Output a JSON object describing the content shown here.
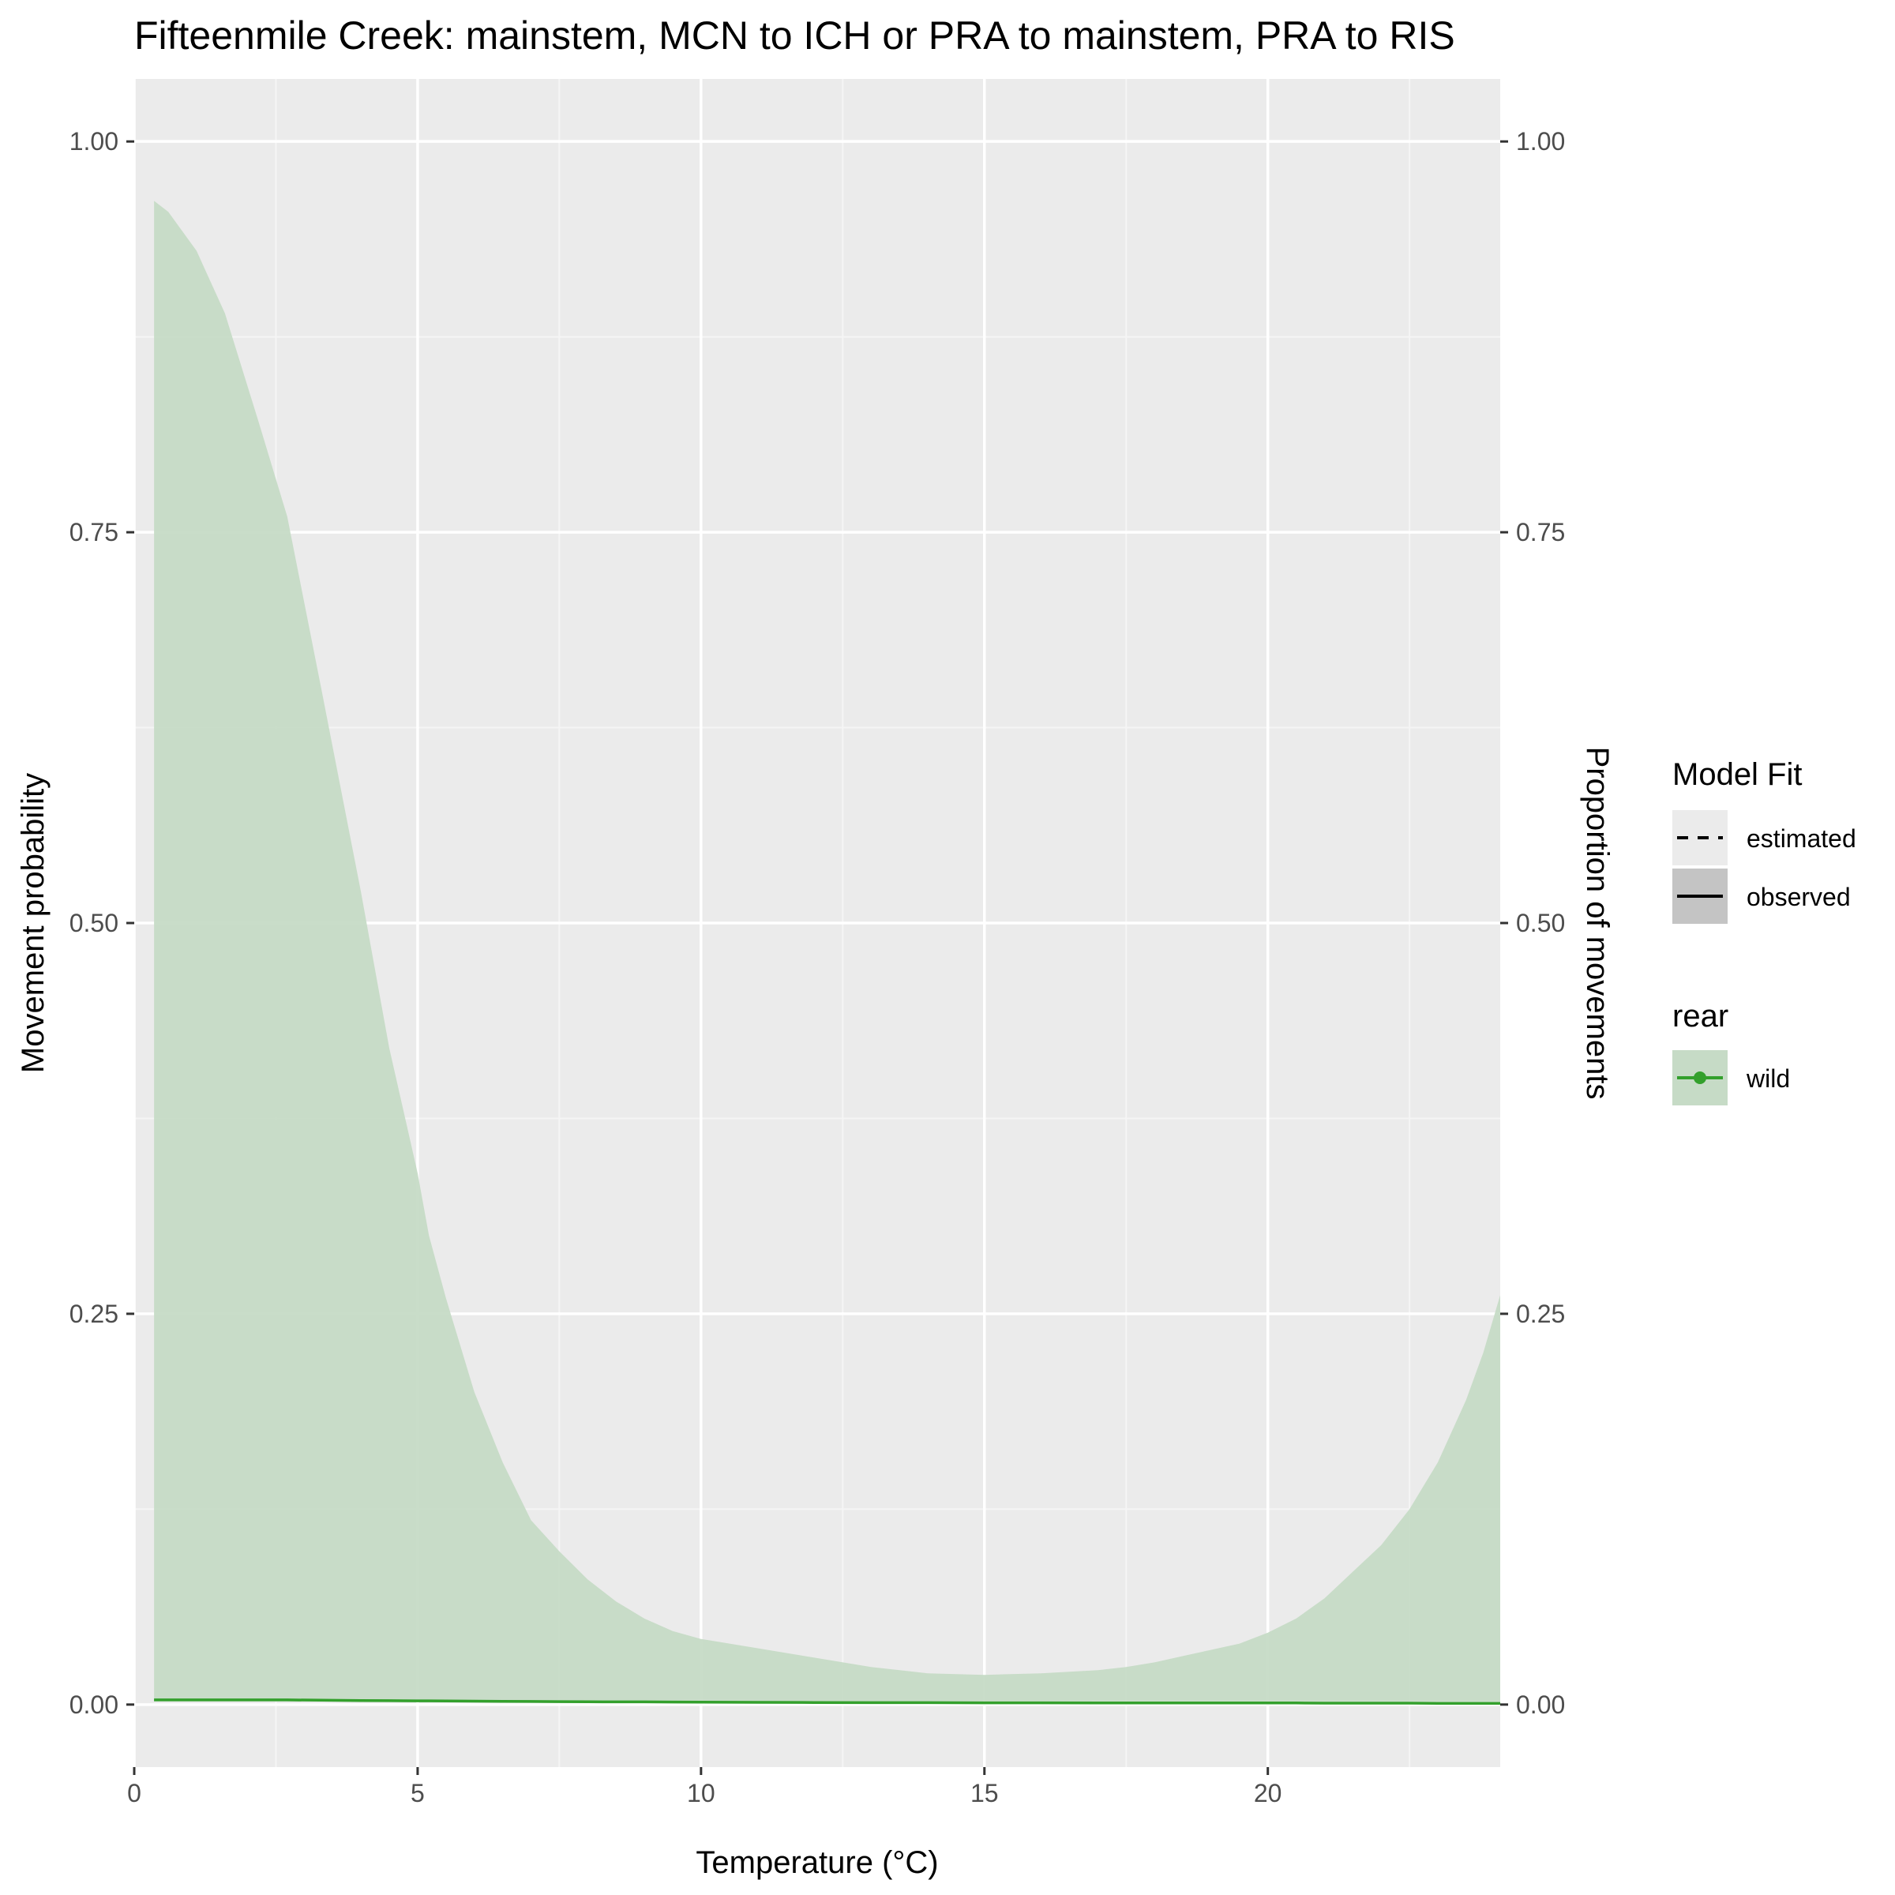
{
  "chart_data": {
    "type": "area",
    "title": "Fifteenmile Creek: mainstem, MCN to ICH or PRA to mainstem, PRA to RIS",
    "xlabel": "Temperature (°C)",
    "ylabel": "Movement probability",
    "ylabel_secondary": "Proportion of movements",
    "xlim": [
      0,
      24.1
    ],
    "ylim": [
      0,
      1
    ],
    "x_ticks": [
      0,
      5,
      10,
      15,
      20
    ],
    "x_tick_labels": [
      "0",
      "5",
      "10",
      "15",
      "20"
    ],
    "y_ticks": [
      0,
      0.25,
      0.5,
      0.75,
      1.0
    ],
    "y_tick_labels": [
      "0.00",
      "0.25",
      "0.50",
      "0.75",
      "1.00"
    ],
    "grid": true,
    "legend_placement": "right",
    "legends": [
      {
        "title": "Model Fit",
        "entries": [
          {
            "label": "estimated",
            "linetype": "dashed"
          },
          {
            "label": "observed",
            "linetype": "solid"
          }
        ]
      },
      {
        "title": "rear",
        "entries": [
          {
            "label": "wild",
            "color": "#33a02c"
          }
        ]
      }
    ],
    "series": [
      {
        "name": "wild",
        "color": "#33a02c",
        "ribbon_fill": "#c6dbc6",
        "x": [
          0.35,
          0.6,
          1.1,
          1.6,
          2.2,
          2.7,
          3.3,
          4.0,
          4.5,
          5.0,
          5.2,
          5.5,
          6.0,
          6.5,
          7.0,
          7.5,
          8.0,
          8.5,
          9.0,
          9.5,
          10.0,
          11.0,
          12.0,
          13.0,
          14.0,
          15.0,
          16.0,
          17.0,
          17.5,
          18.0,
          18.5,
          19.0,
          19.5,
          20.0,
          20.5,
          21.0,
          21.5,
          22.0,
          22.5,
          23.0,
          23.5,
          23.8,
          24.1
        ],
        "lower": [
          0.002,
          0.002,
          0.002,
          0.002,
          0.002,
          0.002,
          0.002,
          0.002,
          0.002,
          0.002,
          0.002,
          0.002,
          0.002,
          0.002,
          0.002,
          0.002,
          0.002,
          0.002,
          0.002,
          0.002,
          0.002,
          0.002,
          0.002,
          0.002,
          0.002,
          0.002,
          0.002,
          0.002,
          0.002,
          0.002,
          0.002,
          0.002,
          0.002,
          0.002,
          0.002,
          0.002,
          0.002,
          0.002,
          0.002,
          0.002,
          0.002,
          0.002,
          0.002
        ],
        "upper": [
          0.962,
          0.955,
          0.93,
          0.89,
          0.82,
          0.76,
          0.65,
          0.52,
          0.42,
          0.34,
          0.3,
          0.26,
          0.2,
          0.155,
          0.118,
          0.098,
          0.08,
          0.066,
          0.055,
          0.047,
          0.042,
          0.036,
          0.03,
          0.024,
          0.02,
          0.019,
          0.02,
          0.022,
          0.024,
          0.027,
          0.031,
          0.035,
          0.039,
          0.046,
          0.055,
          0.068,
          0.085,
          0.102,
          0.125,
          0.155,
          0.195,
          0.225,
          0.262
        ],
        "estimate": [
          0.003,
          0.003,
          0.003,
          0.003,
          0.003,
          0.003,
          0.0028,
          0.0026,
          0.0025,
          0.0024,
          0.0024,
          0.0023,
          0.0022,
          0.0021,
          0.002,
          0.0019,
          0.0018,
          0.0017,
          0.0017,
          0.0016,
          0.0015,
          0.0014,
          0.0013,
          0.0012,
          0.0012,
          0.0011,
          0.0011,
          0.001,
          0.001,
          0.001,
          0.001,
          0.001,
          0.001,
          0.001,
          0.001,
          0.0009,
          0.0009,
          0.0009,
          0.0009,
          0.0008,
          0.0008,
          0.0008,
          0.0008
        ]
      }
    ]
  }
}
